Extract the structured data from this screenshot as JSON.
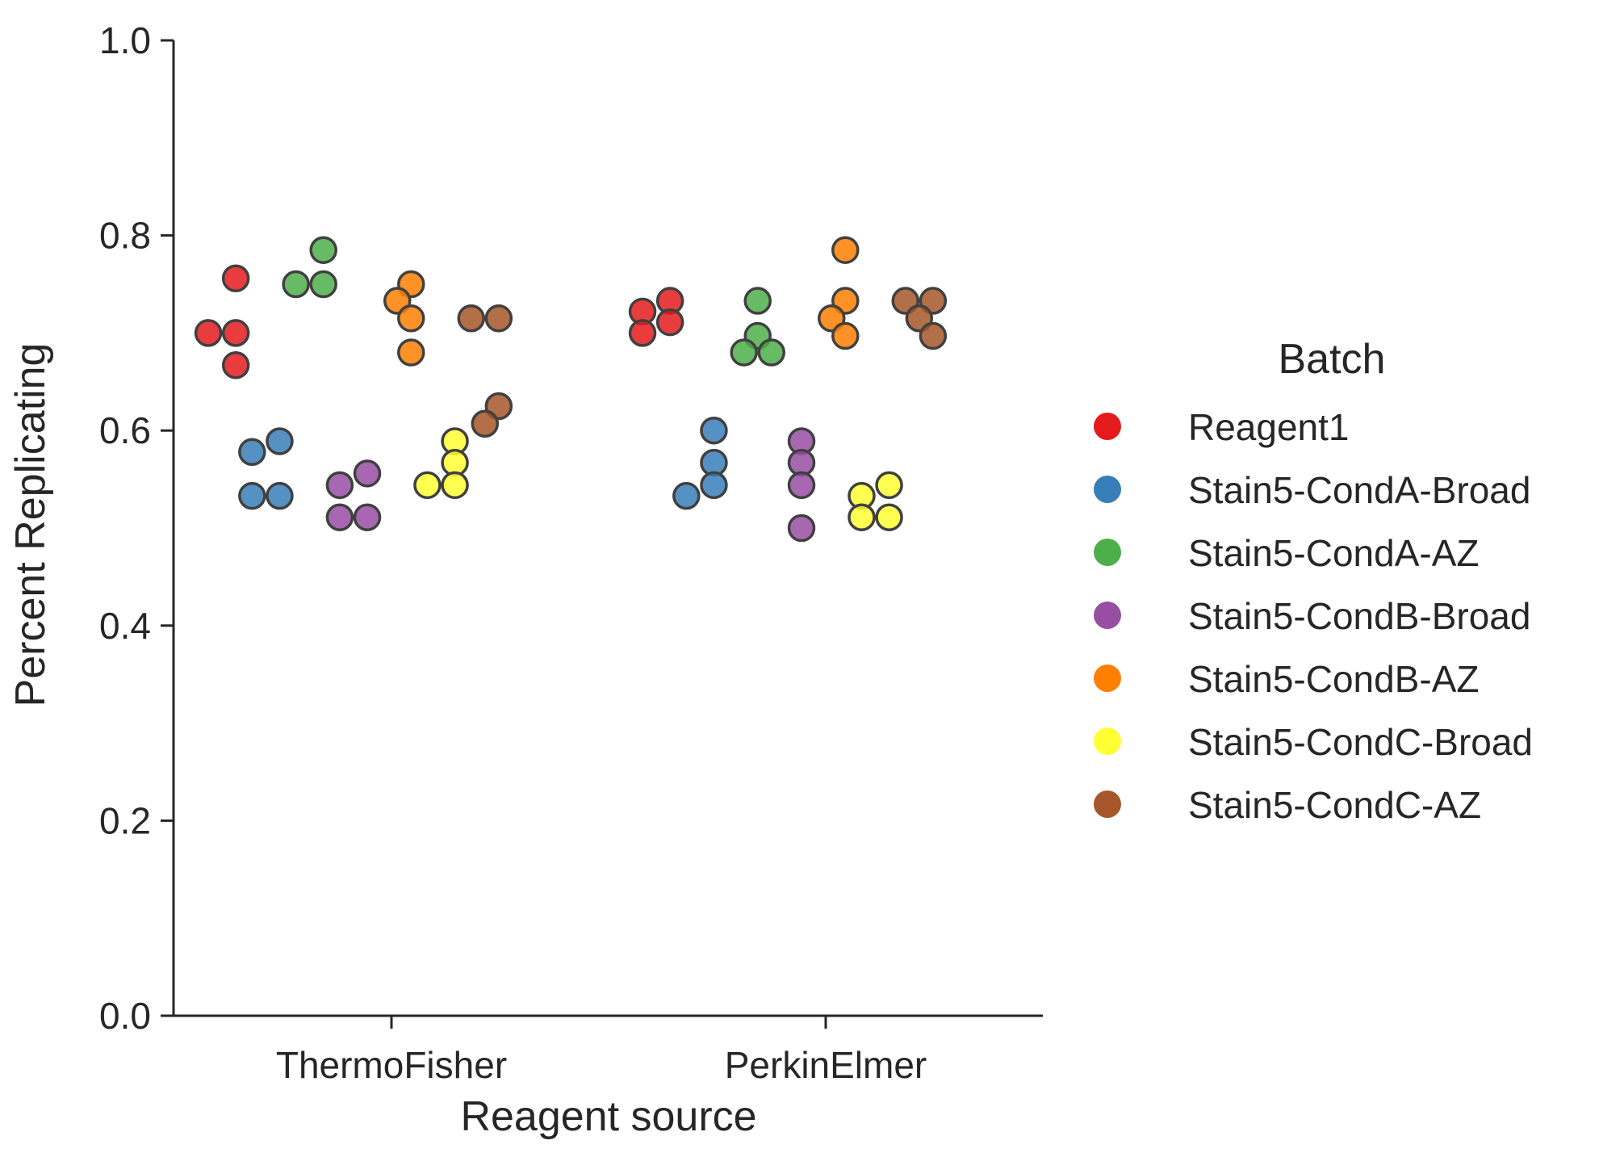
{
  "chart_data": {
    "type": "scatter",
    "xlabel": "Reagent source",
    "ylabel": "Percent Replicating",
    "ylim": [
      0.0,
      1.0
    ],
    "yticks": [
      "0.0",
      "0.2",
      "0.4",
      "0.6",
      "0.8",
      "1.0"
    ],
    "categories": [
      "ThermoFisher",
      "PerkinElmer"
    ],
    "grid": false,
    "legend": {
      "title": "Batch",
      "placement": "right"
    },
    "series": [
      {
        "name": "Reagent1",
        "color": "#e41a1c",
        "values": {
          "ThermoFisher": [
            0.756,
            0.7,
            0.7,
            0.667
          ],
          "PerkinElmer": [
            0.733,
            0.722,
            0.711,
            0.7
          ]
        }
      },
      {
        "name": "Stain5-CondA-Broad",
        "color": "#377eb8",
        "values": {
          "ThermoFisher": [
            0.589,
            0.578,
            0.533,
            0.533
          ],
          "PerkinElmer": [
            0.6,
            0.567,
            0.544,
            0.533
          ]
        }
      },
      {
        "name": "Stain5-CondA-AZ",
        "color": "#4daf4a",
        "values": {
          "ThermoFisher": [
            0.785,
            0.75,
            0.75
          ],
          "PerkinElmer": [
            0.733,
            0.697,
            0.68,
            0.68
          ]
        }
      },
      {
        "name": "Stain5-CondB-Broad",
        "color": "#984ea3",
        "values": {
          "ThermoFisher": [
            0.556,
            0.544,
            0.511,
            0.511
          ],
          "PerkinElmer": [
            0.589,
            0.567,
            0.544,
            0.5
          ]
        }
      },
      {
        "name": "Stain5-CondB-AZ",
        "color": "#ff7f00",
        "values": {
          "ThermoFisher": [
            0.75,
            0.733,
            0.715,
            0.68
          ],
          "PerkinElmer": [
            0.785,
            0.733,
            0.715,
            0.697
          ]
        }
      },
      {
        "name": "Stain5-CondC-Broad",
        "color": "#ffff33",
        "values": {
          "ThermoFisher": [
            0.589,
            0.567,
            0.544,
            0.544
          ],
          "PerkinElmer": [
            0.544,
            0.533,
            0.511,
            0.511
          ]
        }
      },
      {
        "name": "Stain5-CondC-AZ",
        "color": "#a65628",
        "values": {
          "ThermoFisher": [
            0.715,
            0.715,
            0.625,
            0.607
          ],
          "PerkinElmer": [
            0.733,
            0.733,
            0.715,
            0.697
          ]
        }
      }
    ]
  }
}
